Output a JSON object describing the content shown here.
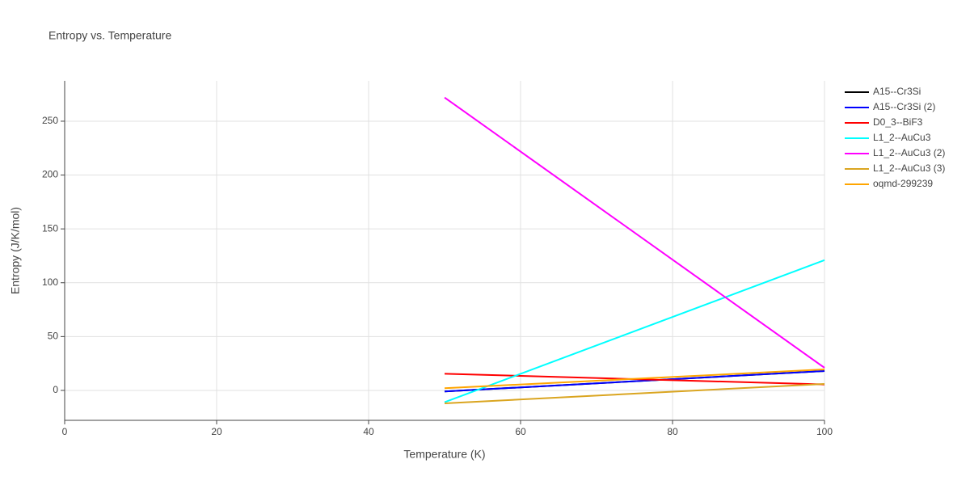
{
  "chart_data": {
    "type": "line",
    "title": "Entropy vs. Temperature",
    "x_label": "Temperature (K)",
    "y_label": "Entropy (J/K/mol)",
    "xlim": [
      0,
      100
    ],
    "xticks": [
      0,
      20,
      40,
      60,
      80,
      100
    ],
    "ylim": [
      -27.8,
      287.5
    ],
    "yticks": [
      0,
      50,
      100,
      150,
      200,
      250
    ],
    "grid": true,
    "legend": "right",
    "x": [
      50,
      100
    ],
    "series": [
      {
        "name": "A15--Cr3Si",
        "color": "#000000",
        "values": [
          -1,
          18
        ]
      },
      {
        "name": "A15--Cr3Si (2)",
        "color": "#0000ff",
        "values": [
          -1,
          18
        ]
      },
      {
        "name": "D0_3--BiF3",
        "color": "#ff0000",
        "values": [
          15.5,
          5.5
        ]
      },
      {
        "name": "L1_2--AuCu3",
        "color": "#00ffff",
        "values": [
          -11,
          121
        ]
      },
      {
        "name": "L1_2--AuCu3 (2)",
        "color": "#ff00ff",
        "values": [
          272,
          21
        ]
      },
      {
        "name": "L1_2--AuCu3 (3)",
        "color": "#daa520",
        "values": [
          -12,
          6
        ]
      },
      {
        "name": "oqmd-299239",
        "color": "#ffa500",
        "values": [
          2,
          19.5
        ]
      }
    ]
  }
}
